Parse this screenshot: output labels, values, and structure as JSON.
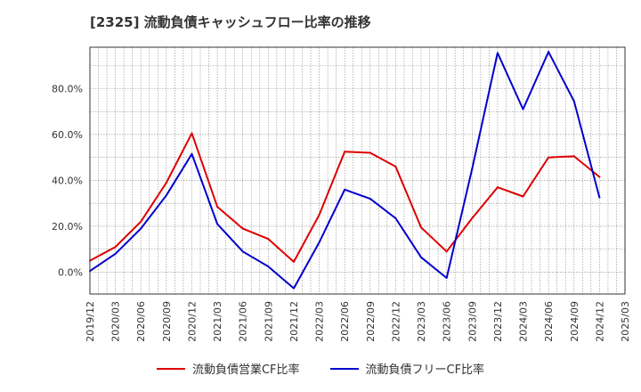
{
  "title": "[2325]  流動負債キャッシュフロー比率の推移",
  "colors": {
    "series1": "#dd0000",
    "series2": "#0000cc",
    "grid": "#888888",
    "axis": "#333333"
  },
  "chart_data": {
    "type": "line",
    "title": "[2325]  流動負債キャッシュフロー比率の推移",
    "xlabel": "",
    "ylabel": "",
    "ylim": [
      -9.5,
      98
    ],
    "yticks": [
      0,
      20,
      40,
      60,
      80
    ],
    "ytick_labels": [
      "0.0%",
      "20.0%",
      "40.0%",
      "60.0%",
      "80.0%"
    ],
    "xlim": [
      "2019/12",
      "2025/03"
    ],
    "xtick_labels": [
      "2019/12",
      "2020/03",
      "2020/06",
      "2020/09",
      "2020/12",
      "2021/03",
      "2021/06",
      "2021/09",
      "2021/12",
      "2022/03",
      "2022/06",
      "2022/09",
      "2022/12",
      "2023/03",
      "2023/06",
      "2023/09",
      "2023/12",
      "2024/03",
      "2024/06",
      "2024/09",
      "2024/12",
      "2025/03"
    ],
    "grid": true,
    "legend_position": "bottom",
    "series": [
      {
        "name": "流動負債営業CF比率",
        "color": "#dd0000",
        "points": [
          [
            "2019/12",
            5.0
          ],
          [
            "2020/03",
            11.0
          ],
          [
            "2020/06",
            22.0
          ],
          [
            "2020/09",
            39.0
          ],
          [
            "2020/12",
            60.5
          ],
          [
            "2021/03",
            28.5
          ],
          [
            "2021/06",
            19.0
          ],
          [
            "2021/09",
            14.5
          ],
          [
            "2021/12",
            4.5
          ],
          [
            "2022/03",
            25.0
          ],
          [
            "2022/06",
            52.5
          ],
          [
            "2022/09",
            52.0
          ],
          [
            "2022/12",
            46.0
          ],
          [
            "2023/03",
            19.5
          ],
          [
            "2023/06",
            9.0
          ],
          [
            "2023/09",
            23.5
          ],
          [
            "2023/12",
            37.0
          ],
          [
            "2024/03",
            33.0
          ],
          [
            "2024/06",
            50.0
          ],
          [
            "2024/09",
            50.5
          ],
          [
            "2024/12",
            41.5
          ]
        ]
      },
      {
        "name": "流動負債フリーCF比率",
        "color": "#0000cc",
        "points": [
          [
            "2019/12",
            0.5
          ],
          [
            "2020/03",
            8.0
          ],
          [
            "2020/06",
            19.0
          ],
          [
            "2020/09",
            33.5
          ],
          [
            "2020/12",
            51.5
          ],
          [
            "2021/03",
            21.0
          ],
          [
            "2021/06",
            9.0
          ],
          [
            "2021/09",
            2.5
          ],
          [
            "2021/12",
            -7.0
          ],
          [
            "2022/03",
            13.0
          ],
          [
            "2022/06",
            36.0
          ],
          [
            "2022/09",
            32.0
          ],
          [
            "2022/12",
            23.5
          ],
          [
            "2023/03",
            6.5
          ],
          [
            "2023/06",
            -2.5
          ],
          [
            "2023/09",
            45.0
          ],
          [
            "2023/12",
            95.5
          ],
          [
            "2024/03",
            71.0
          ],
          [
            "2024/06",
            96.0
          ],
          [
            "2024/09",
            74.5
          ],
          [
            "2024/12",
            32.5
          ]
        ]
      }
    ]
  }
}
